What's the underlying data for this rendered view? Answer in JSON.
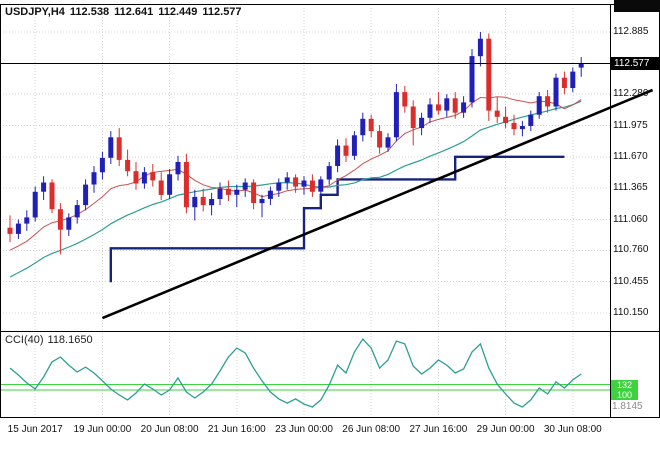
{
  "header": {
    "symbol_period": "USDJPY,H4",
    "open": "112.538",
    "high": "112.641",
    "low": "112.449",
    "close": "112.577"
  },
  "price_axis": {
    "labels": [
      "112.885",
      "112.280",
      "111.975",
      "111.670",
      "111.365",
      "111.060",
      "110.760",
      "110.455",
      "110.150"
    ],
    "current_label": "112.577"
  },
  "time_axis": {
    "labels": [
      {
        "text": "15 Jun 2017",
        "index": 3
      },
      {
        "text": "19 Jun 00:00",
        "index": 11
      },
      {
        "text": "20 Jun 08:00",
        "index": 19
      },
      {
        "text": "21 Jun 16:00",
        "index": 27
      },
      {
        "text": "23 Jun 00:00",
        "index": 35
      },
      {
        "text": "26 Jun 08:00",
        "index": 43
      },
      {
        "text": "27 Jun 16:00",
        "index": 51
      },
      {
        "text": "29 Jun 00:00",
        "index": 59
      },
      {
        "text": "30 Jun 08:00",
        "index": 67
      }
    ]
  },
  "indicator_panel": {
    "name": "CCI(40)",
    "value": "118.1650",
    "level_labels": [
      "132",
      "100"
    ],
    "axis_bottom_label": "1.8145"
  },
  "chart_data": {
    "type": "candlestick",
    "symbol": "USDJPY",
    "timeframe": "H4",
    "title": "USDJPY,H4",
    "ylim": [
      110.15,
      112.885
    ],
    "current_price": 112.577,
    "grid": "dotted",
    "candles": [
      [
        110.98,
        111.1,
        110.84,
        110.92
      ],
      [
        110.92,
        111.06,
        110.87,
        111.02
      ],
      [
        111.02,
        111.15,
        110.95,
        111.08
      ],
      [
        111.08,
        111.38,
        111.04,
        111.33
      ],
      [
        111.33,
        111.48,
        111.25,
        111.42
      ],
      [
        111.42,
        111.45,
        111.12,
        111.16
      ],
      [
        111.16,
        111.22,
        110.72,
        110.96
      ],
      [
        110.96,
        111.12,
        110.9,
        111.08
      ],
      [
        111.08,
        111.25,
        111.02,
        111.2
      ],
      [
        111.2,
        111.45,
        111.15,
        111.4
      ],
      [
        111.4,
        111.58,
        111.32,
        111.52
      ],
      [
        111.52,
        111.72,
        111.45,
        111.66
      ],
      [
        111.66,
        111.92,
        111.6,
        111.86
      ],
      [
        111.86,
        111.95,
        111.58,
        111.64
      ],
      [
        111.64,
        111.74,
        111.48,
        111.53
      ],
      [
        111.53,
        111.62,
        111.35,
        111.41
      ],
      [
        111.41,
        111.57,
        111.36,
        111.52
      ],
      [
        111.52,
        111.6,
        111.38,
        111.44
      ],
      [
        111.44,
        111.52,
        111.25,
        111.3
      ],
      [
        111.3,
        111.55,
        111.26,
        111.5
      ],
      [
        111.5,
        111.68,
        111.44,
        111.62
      ],
      [
        111.62,
        111.7,
        111.12,
        111.18
      ],
      [
        111.18,
        111.35,
        111.05,
        111.28
      ],
      [
        111.28,
        111.36,
        111.14,
        111.2
      ],
      [
        111.2,
        111.32,
        111.1,
        111.26
      ],
      [
        111.26,
        111.42,
        111.2,
        111.36
      ],
      [
        111.36,
        111.44,
        111.24,
        111.3
      ],
      [
        111.3,
        111.4,
        111.18,
        111.35
      ],
      [
        111.35,
        111.46,
        111.28,
        111.42
      ],
      [
        111.42,
        111.45,
        111.16,
        111.22
      ],
      [
        111.22,
        111.3,
        111.08,
        111.26
      ],
      [
        111.26,
        111.38,
        111.2,
        111.34
      ],
      [
        111.34,
        111.46,
        111.28,
        111.42
      ],
      [
        111.42,
        111.52,
        111.35,
        111.47
      ],
      [
        111.47,
        111.5,
        111.32,
        111.38
      ],
      [
        111.38,
        111.48,
        111.3,
        111.44
      ],
      [
        111.44,
        111.5,
        111.28,
        111.33
      ],
      [
        111.33,
        111.48,
        111.29,
        111.45
      ],
      [
        111.45,
        111.62,
        111.4,
        111.58
      ],
      [
        111.58,
        111.84,
        111.52,
        111.78
      ],
      [
        111.78,
        111.85,
        111.62,
        111.68
      ],
      [
        111.68,
        111.92,
        111.64,
        111.88
      ],
      [
        111.88,
        112.1,
        111.82,
        112.04
      ],
      [
        112.04,
        112.08,
        111.86,
        111.92
      ],
      [
        111.92,
        111.98,
        111.7,
        111.76
      ],
      [
        111.76,
        111.9,
        111.72,
        111.86
      ],
      [
        111.86,
        112.38,
        111.82,
        112.3
      ],
      [
        112.3,
        112.36,
        112.1,
        112.16
      ],
      [
        112.16,
        112.22,
        111.78,
        111.95
      ],
      [
        111.95,
        112.1,
        111.88,
        112.05
      ],
      [
        112.05,
        112.24,
        112.0,
        112.18
      ],
      [
        112.18,
        112.3,
        112.08,
        112.12
      ],
      [
        112.12,
        112.28,
        112.06,
        112.24
      ],
      [
        112.24,
        112.3,
        112.04,
        112.1
      ],
      [
        112.1,
        112.26,
        112.05,
        112.2
      ],
      [
        112.2,
        112.72,
        112.15,
        112.65
      ],
      [
        112.65,
        112.885,
        112.55,
        112.82
      ],
      [
        112.82,
        112.87,
        112.02,
        112.12
      ],
      [
        112.12,
        112.25,
        112.0,
        112.06
      ],
      [
        112.06,
        112.16,
        111.95,
        112.0
      ],
      [
        112.0,
        112.08,
        111.88,
        111.94
      ],
      [
        111.94,
        112.02,
        111.87,
        111.97
      ],
      [
        111.97,
        112.12,
        111.92,
        112.08
      ],
      [
        112.08,
        112.3,
        112.04,
        112.26
      ],
      [
        112.26,
        112.32,
        112.1,
        112.16
      ],
      [
        112.16,
        112.48,
        112.12,
        112.44
      ],
      [
        112.44,
        112.5,
        112.28,
        112.34
      ],
      [
        112.34,
        112.54,
        112.3,
        112.5
      ],
      [
        112.538,
        112.641,
        112.449,
        112.577
      ]
    ],
    "overlays": {
      "moving_averages": [
        {
          "name": "ma-fast",
          "period": 10
        },
        {
          "name": "ma-slow",
          "period": 24
        }
      ],
      "support_step_line": {
        "start_price": 110.45,
        "segments": [
          {
            "from": 12,
            "to": 35,
            "level": 110.78
          },
          {
            "from": 35,
            "to": 37,
            "level": 111.17
          },
          {
            "from": 37,
            "to": 39,
            "level": 111.3
          },
          {
            "from": 39,
            "to": 53,
            "level": 111.45
          },
          {
            "from": 53,
            "to": 66,
            "level": 111.67
          }
        ]
      },
      "trendline": {
        "from": {
          "index": 11,
          "price": 110.1
        },
        "to": {
          "index": 76.5,
          "price": 112.32
        }
      }
    },
    "indicator": {
      "type": "CCI",
      "period": 40,
      "current": 118.165,
      "levels": [
        132,
        100
      ],
      "values": [
        232,
        190,
        142,
        105,
        178,
        269,
        299,
        250,
        208,
        238,
        202,
        154,
        105,
        69,
        39,
        81,
        135,
        105,
        69,
        99,
        172,
        87,
        51,
        87,
        135,
        214,
        299,
        353,
        323,
        232,
        154,
        87,
        45,
        20,
        45,
        14,
        -4,
        39,
        129,
        250,
        202,
        329,
        408,
        353,
        232,
        281,
        396,
        378,
        244,
        196,
        232,
        281,
        250,
        202,
        226,
        329,
        378,
        232,
        135,
        75,
        20,
        -4,
        39,
        111,
        75,
        148,
        111,
        160,
        196
      ]
    }
  },
  "colors": {
    "bull": "#2020b8",
    "bear": "#dd2c2c",
    "grid": "#d4d4d4",
    "ma_fast": "#c9514e",
    "ma_slow": "#2e9e96",
    "step": "#16247e",
    "cci": "#2e9e96",
    "level": "#3dd33d",
    "price_line": "#000000",
    "frame": "#000000"
  }
}
